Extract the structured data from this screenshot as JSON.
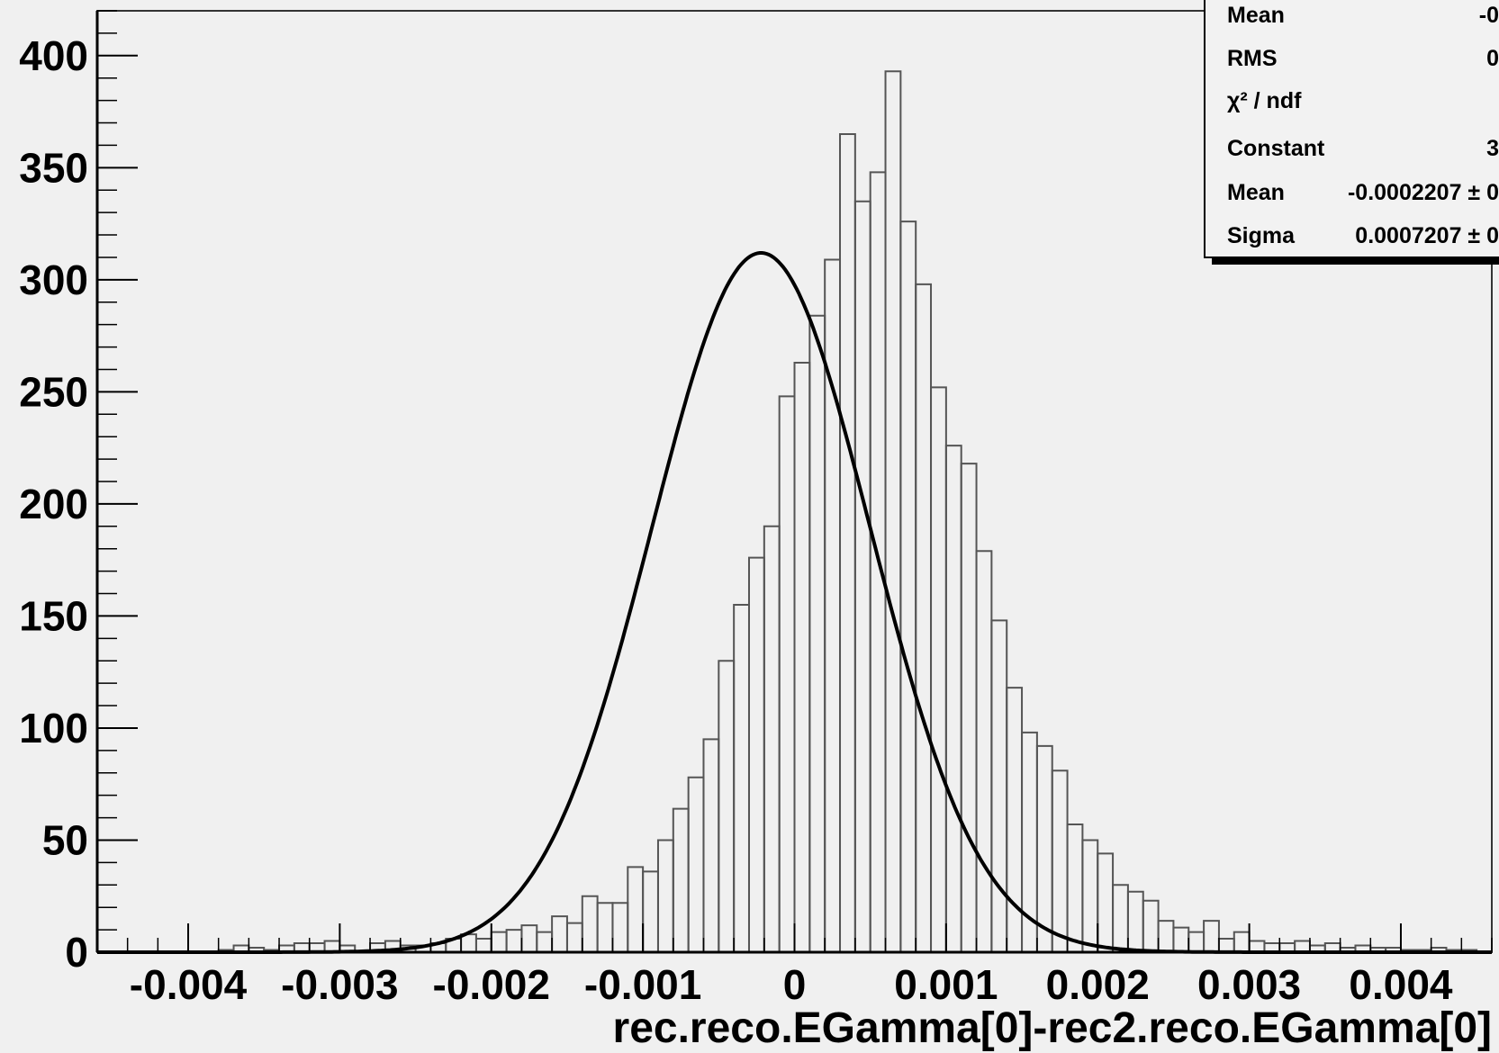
{
  "chart_data": {
    "type": "histogram",
    "xlabel": "rec.reco.EGamma[0]-rec2.reco.EGamma[0]",
    "ylabel": "",
    "xlim": [
      -0.0046,
      0.0046
    ],
    "ylim": [
      0,
      400
    ],
    "x_ticks": [
      -0.004,
      -0.003,
      -0.002,
      -0.001,
      0,
      0.001,
      0.002,
      0.003,
      0.004
    ],
    "x_tick_labels": [
      "-0.004",
      "-0.003",
      "-0.002",
      "-0.001",
      "0",
      "0.001",
      "0.002",
      "0.003",
      "0.004"
    ],
    "y_ticks": [
      0,
      50,
      100,
      150,
      200,
      250,
      300,
      350,
      400
    ],
    "y_tick_labels": [
      "0",
      "50",
      "100",
      "150",
      "200",
      "250",
      "300",
      "350",
      "400"
    ],
    "grid": false,
    "histogram": {
      "bin_width": 0.0001,
      "bin_edges_start": -0.0046,
      "counts": [
        0,
        0,
        0,
        0,
        0,
        0,
        0,
        0,
        1,
        3,
        2,
        1,
        3,
        4,
        4,
        5,
        3,
        0,
        4,
        5,
        3,
        3,
        4,
        6,
        8,
        6,
        9,
        10,
        12,
        9,
        16,
        13,
        25,
        22,
        22,
        38,
        36,
        50,
        64,
        78,
        95,
        130,
        155,
        176,
        190,
        248,
        263,
        284,
        309,
        365,
        335,
        348,
        393,
        326,
        298,
        252,
        226,
        218,
        179,
        148,
        118,
        98,
        92,
        81,
        57,
        50,
        44,
        30,
        27,
        23,
        14,
        11,
        9,
        14,
        6,
        9,
        5,
        4,
        4,
        5,
        3,
        4,
        2,
        3,
        2,
        2,
        1,
        1,
        2,
        1,
        1,
        0,
        0
      ]
    },
    "fit": {
      "type": "gaussian",
      "constant": 312,
      "mean": -0.0002207,
      "sigma": 0.0007207
    },
    "stats_box": {
      "rows": [
        {
          "label": "Mean",
          "value": "-0"
        },
        {
          "label": "RMS",
          "value": "0"
        },
        {
          "label": "χ² / ndf",
          "value": ""
        },
        {
          "label": "Constant",
          "value": "3"
        },
        {
          "label": "Mean",
          "value": "-0.0002207 ± 0"
        },
        {
          "label": "Sigma",
          "value": "0.0007207 ± 0"
        }
      ]
    }
  }
}
